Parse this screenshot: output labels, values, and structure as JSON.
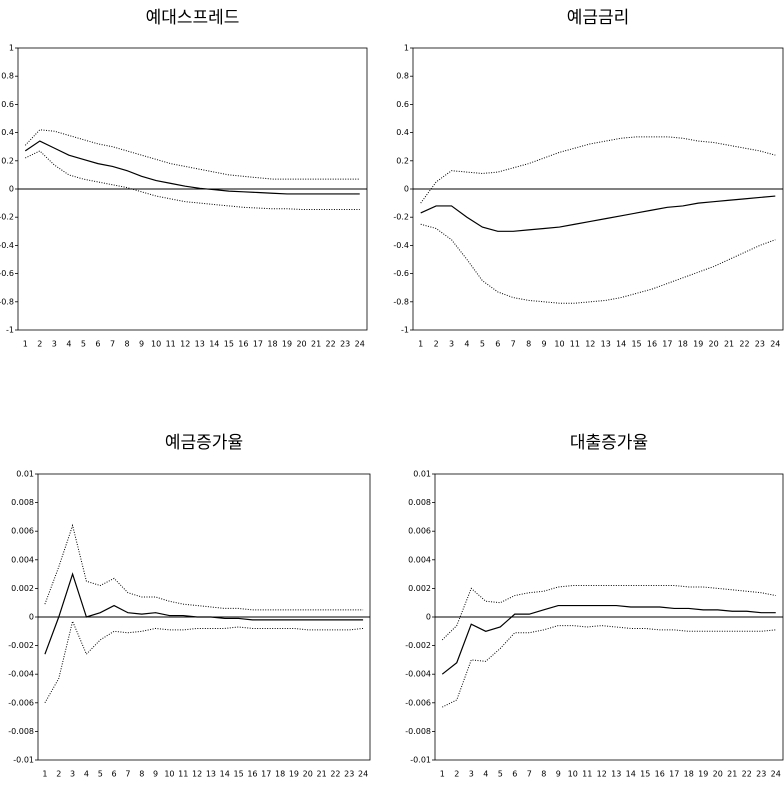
{
  "chart_data": [
    {
      "type": "line",
      "title": "예대스프레드",
      "categories": [
        1,
        2,
        3,
        4,
        5,
        6,
        7,
        8,
        9,
        10,
        11,
        12,
        13,
        14,
        15,
        16,
        17,
        18,
        19,
        20,
        21,
        22,
        23,
        24
      ],
      "ylim": [
        -1,
        1
      ],
      "yticks": [
        -1,
        -0.8,
        -0.6,
        -0.4,
        -0.2,
        0,
        0.2,
        0.4,
        0.6,
        0.8,
        1
      ],
      "series": [
        {
          "color": "#000000",
          "style": "solid",
          "values": [
            0.27,
            0.34,
            0.29,
            0.24,
            0.21,
            0.18,
            0.16,
            0.13,
            0.09,
            0.06,
            0.04,
            0.02,
            0.005,
            -0.005,
            -0.015,
            -0.02,
            -0.025,
            -0.03,
            -0.035,
            -0.035,
            -0.035,
            -0.035,
            -0.035,
            -0.035
          ]
        },
        {
          "color": "#000000",
          "style": "dotted",
          "values": [
            0.31,
            0.42,
            0.41,
            0.38,
            0.35,
            0.32,
            0.3,
            0.27,
            0.24,
            0.21,
            0.18,
            0.16,
            0.14,
            0.12,
            0.1,
            0.09,
            0.08,
            0.07,
            0.07,
            0.07,
            0.07,
            0.07,
            0.07,
            0.07
          ]
        },
        {
          "color": "#000000",
          "style": "dotted",
          "values": [
            0.22,
            0.27,
            0.17,
            0.1,
            0.07,
            0.05,
            0.03,
            0.01,
            -0.02,
            -0.05,
            -0.07,
            -0.09,
            -0.1,
            -0.11,
            -0.12,
            -0.13,
            -0.135,
            -0.14,
            -0.14,
            -0.145,
            -0.145,
            -0.145,
            -0.145,
            -0.145
          ]
        }
      ]
    },
    {
      "type": "line",
      "title": "예금금리",
      "categories": [
        1,
        2,
        3,
        4,
        5,
        6,
        7,
        8,
        9,
        10,
        11,
        12,
        13,
        14,
        15,
        16,
        17,
        18,
        19,
        20,
        21,
        22,
        23,
        24
      ],
      "ylim": [
        -1,
        1
      ],
      "yticks": [
        -1,
        -0.8,
        -0.6,
        -0.4,
        -0.2,
        0,
        0.2,
        0.4,
        0.6,
        0.8,
        1
      ],
      "series": [
        {
          "color": "#000000",
          "style": "solid",
          "values": [
            -0.17,
            -0.12,
            -0.12,
            -0.2,
            -0.27,
            -0.3,
            -0.3,
            -0.29,
            -0.28,
            -0.27,
            -0.25,
            -0.23,
            -0.21,
            -0.19,
            -0.17,
            -0.15,
            -0.13,
            -0.12,
            -0.1,
            -0.09,
            -0.08,
            -0.07,
            -0.06,
            -0.05
          ]
        },
        {
          "color": "#000000",
          "style": "dotted",
          "values": [
            -0.1,
            0.05,
            0.13,
            0.12,
            0.11,
            0.12,
            0.15,
            0.18,
            0.22,
            0.26,
            0.29,
            0.32,
            0.34,
            0.36,
            0.37,
            0.37,
            0.37,
            0.36,
            0.34,
            0.33,
            0.31,
            0.29,
            0.27,
            0.24
          ]
        },
        {
          "color": "#000000",
          "style": "dotted",
          "values": [
            -0.25,
            -0.28,
            -0.36,
            -0.5,
            -0.65,
            -0.73,
            -0.77,
            -0.79,
            -0.8,
            -0.81,
            -0.81,
            -0.8,
            -0.79,
            -0.77,
            -0.74,
            -0.71,
            -0.67,
            -0.63,
            -0.59,
            -0.55,
            -0.5,
            -0.45,
            -0.4,
            -0.36
          ]
        }
      ]
    },
    {
      "type": "line",
      "title": "예금증가율",
      "categories": [
        1,
        2,
        3,
        4,
        5,
        6,
        7,
        8,
        9,
        10,
        11,
        12,
        13,
        14,
        15,
        16,
        17,
        18,
        19,
        20,
        21,
        22,
        23,
        24
      ],
      "ylim": [
        -0.01,
        0.01
      ],
      "yticks": [
        -0.01,
        -0.008,
        -0.006,
        -0.004,
        -0.002,
        0,
        0.002,
        0.004,
        0.006,
        0.008,
        0.01
      ],
      "series": [
        {
          "color": "#000000",
          "style": "solid",
          "values": [
            -0.0026,
            0,
            0.003,
            0,
            0.0003,
            0.0008,
            0.0003,
            0.0002,
            0.0003,
            0.0001,
            0.0001,
            0,
            0,
            -0.0001,
            -0.0001,
            -0.0002,
            -0.0002,
            -0.0002,
            -0.0002,
            -0.0002,
            -0.0002,
            -0.0002,
            -0.0002,
            -0.0002
          ]
        },
        {
          "color": "#000000",
          "style": "dotted",
          "values": [
            0.0009,
            0.0035,
            0.0064,
            0.0025,
            0.0022,
            0.0027,
            0.0017,
            0.0014,
            0.0014,
            0.0011,
            0.0009,
            0.0008,
            0.0007,
            0.0006,
            0.0006,
            0.0005,
            0.0005,
            0.0005,
            0.0005,
            0.0005,
            0.0005,
            0.0005,
            0.0005,
            0.0005
          ]
        },
        {
          "color": "#000000",
          "style": "dotted",
          "values": [
            -0.006,
            -0.0043,
            -0.0003,
            -0.0026,
            -0.0016,
            -0.001,
            -0.0011,
            -0.001,
            -0.0008,
            -0.0009,
            -0.0009,
            -0.0008,
            -0.0008,
            -0.0008,
            -0.0007,
            -0.0008,
            -0.0008,
            -0.0008,
            -0.0008,
            -0.0009,
            -0.0009,
            -0.0009,
            -0.0009,
            -0.0008
          ]
        }
      ]
    },
    {
      "type": "line",
      "title": "대출증가율",
      "categories": [
        1,
        2,
        3,
        4,
        5,
        6,
        7,
        8,
        9,
        10,
        11,
        12,
        13,
        14,
        15,
        16,
        17,
        18,
        19,
        20,
        21,
        22,
        23,
        24
      ],
      "ylim": [
        -0.01,
        0.01
      ],
      "yticks": [
        -0.01,
        -0.008,
        -0.006,
        -0.004,
        -0.002,
        0,
        0.002,
        0.004,
        0.006,
        0.008,
        0.01
      ],
      "series": [
        {
          "color": "#000000",
          "style": "solid",
          "values": [
            -0.004,
            -0.0032,
            -0.0005,
            -0.001,
            -0.0007,
            0.0002,
            0.0002,
            0.0005,
            0.0008,
            0.0008,
            0.0008,
            0.0008,
            0.0008,
            0.0007,
            0.0007,
            0.0007,
            0.0006,
            0.0006,
            0.0005,
            0.0005,
            0.0004,
            0.0004,
            0.0003,
            0.0003
          ]
        },
        {
          "color": "#000000",
          "style": "dotted",
          "values": [
            -0.0016,
            -0.0006,
            0.002,
            0.0011,
            0.001,
            0.0015,
            0.0017,
            0.0018,
            0.0021,
            0.0022,
            0.0022,
            0.0022,
            0.0022,
            0.0022,
            0.0022,
            0.0022,
            0.0022,
            0.0021,
            0.0021,
            0.002,
            0.0019,
            0.0018,
            0.0017,
            0.0015
          ]
        },
        {
          "color": "#000000",
          "style": "dotted",
          "values": [
            -0.0063,
            -0.0058,
            -0.003,
            -0.0031,
            -0.0022,
            -0.0011,
            -0.0011,
            -0.0009,
            -0.0006,
            -0.0006,
            -0.0007,
            -0.0006,
            -0.0007,
            -0.0008,
            -0.0008,
            -0.0009,
            -0.0009,
            -0.001,
            -0.001,
            -0.001,
            -0.001,
            -0.001,
            -0.001,
            -0.0009
          ]
        }
      ]
    }
  ]
}
